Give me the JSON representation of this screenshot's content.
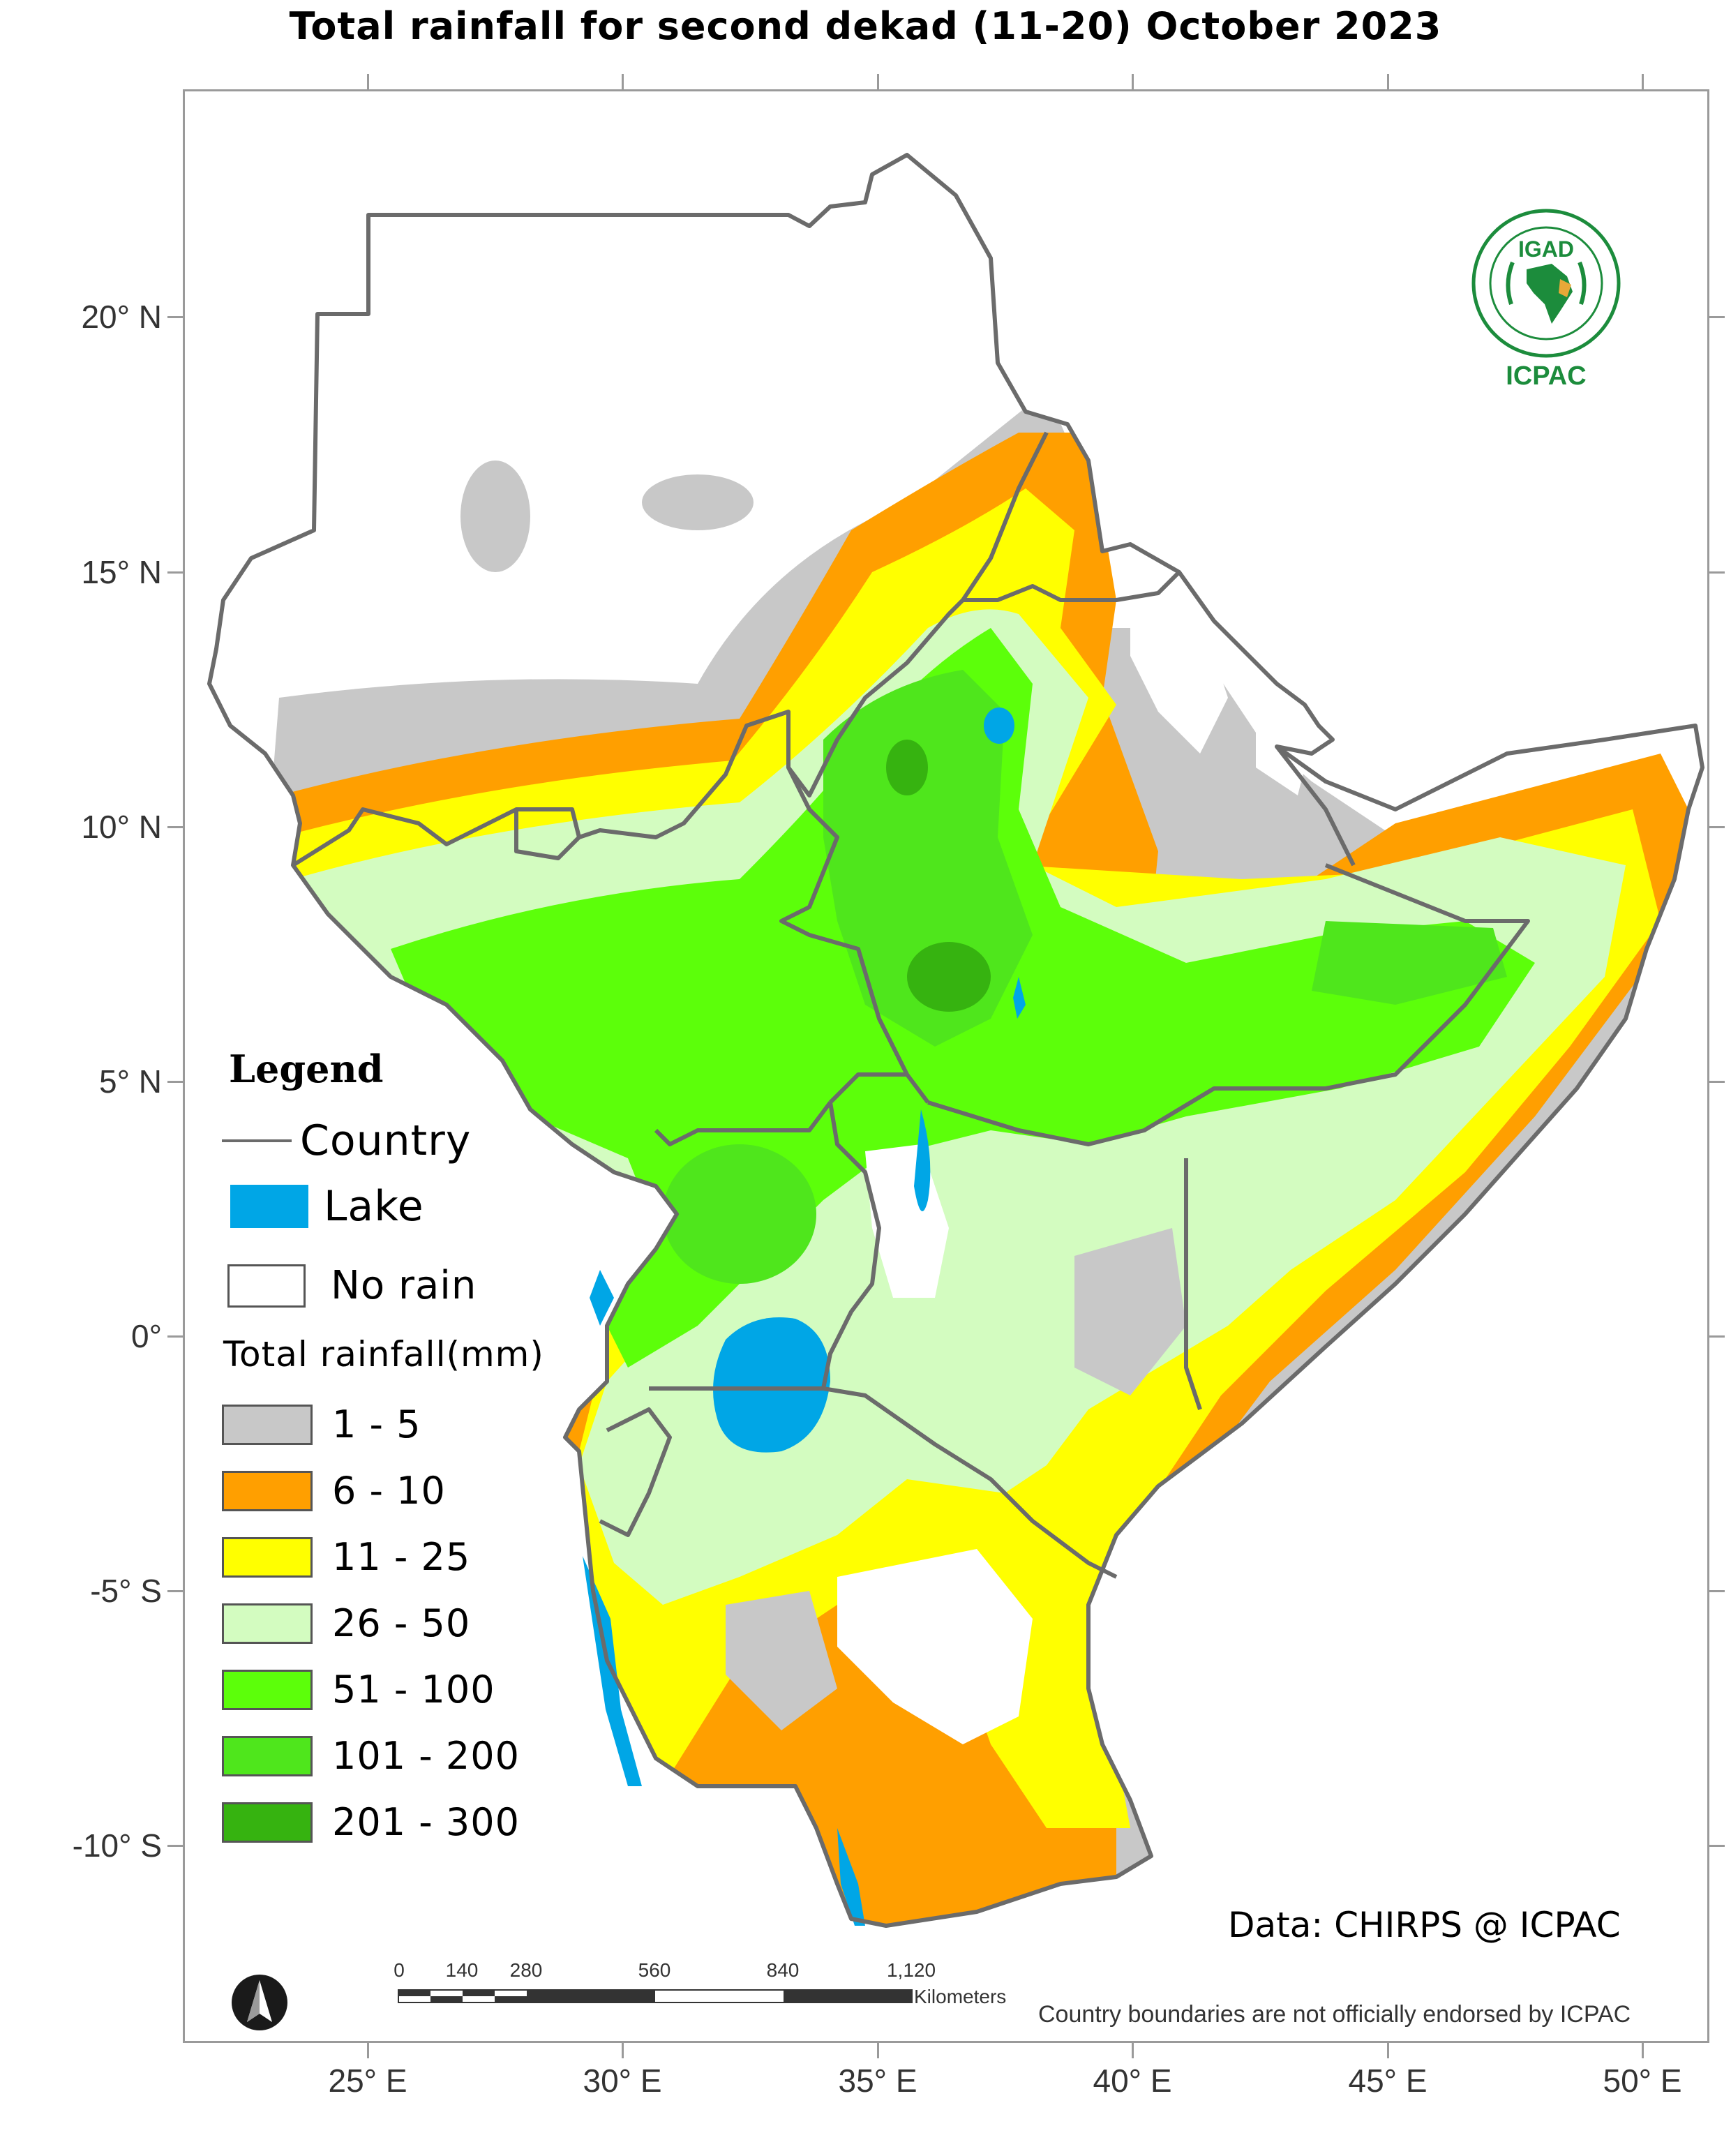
{
  "title": "Total rainfall  for  second dekad (11-20)   October 2023",
  "axes": {
    "x_labels": [
      "25° E",
      "30° E",
      "35° E",
      "40° E",
      "45° E",
      "50° E"
    ],
    "y_labels": [
      "20° N",
      "15° N",
      "10° N",
      "5° N",
      "0°",
      "-5° S",
      "-10° S"
    ]
  },
  "legend": {
    "title": "Legend",
    "country_label": "Country",
    "lake_label": "Lake",
    "no_rain_label": "No rain",
    "rainfall_heading": "Total rainfall(mm)",
    "classes": [
      {
        "label": "1 - 5",
        "color": "#c8c8c8"
      },
      {
        "label": "6 - 10",
        "color": "#ff9f00"
      },
      {
        "label": "11 - 25",
        "color": "#ffff00"
      },
      {
        "label": "26 - 50",
        "color": "#d3fcc0"
      },
      {
        "label": "51 - 100",
        "color": "#5cff0a"
      },
      {
        "label": "101 - 200",
        "color": "#4fe61c"
      },
      {
        "label": "201 - 300",
        "color": "#36b310"
      }
    ],
    "lake_color": "#00a6e6",
    "country_line_color": "#6b6b6b"
  },
  "logo": {
    "name": "IGAD",
    "subtitle": "ICPAC"
  },
  "credit": "Data: CHIRPS @ ICPAC",
  "disclaimer": "Country boundaries are not officially endorsed by ICPAC",
  "scalebar": {
    "ticks": [
      "0",
      "140",
      "280",
      "560",
      "840",
      "1,120"
    ],
    "units": "Kilometers"
  },
  "north_arrow_icon": "north-arrow-icon"
}
